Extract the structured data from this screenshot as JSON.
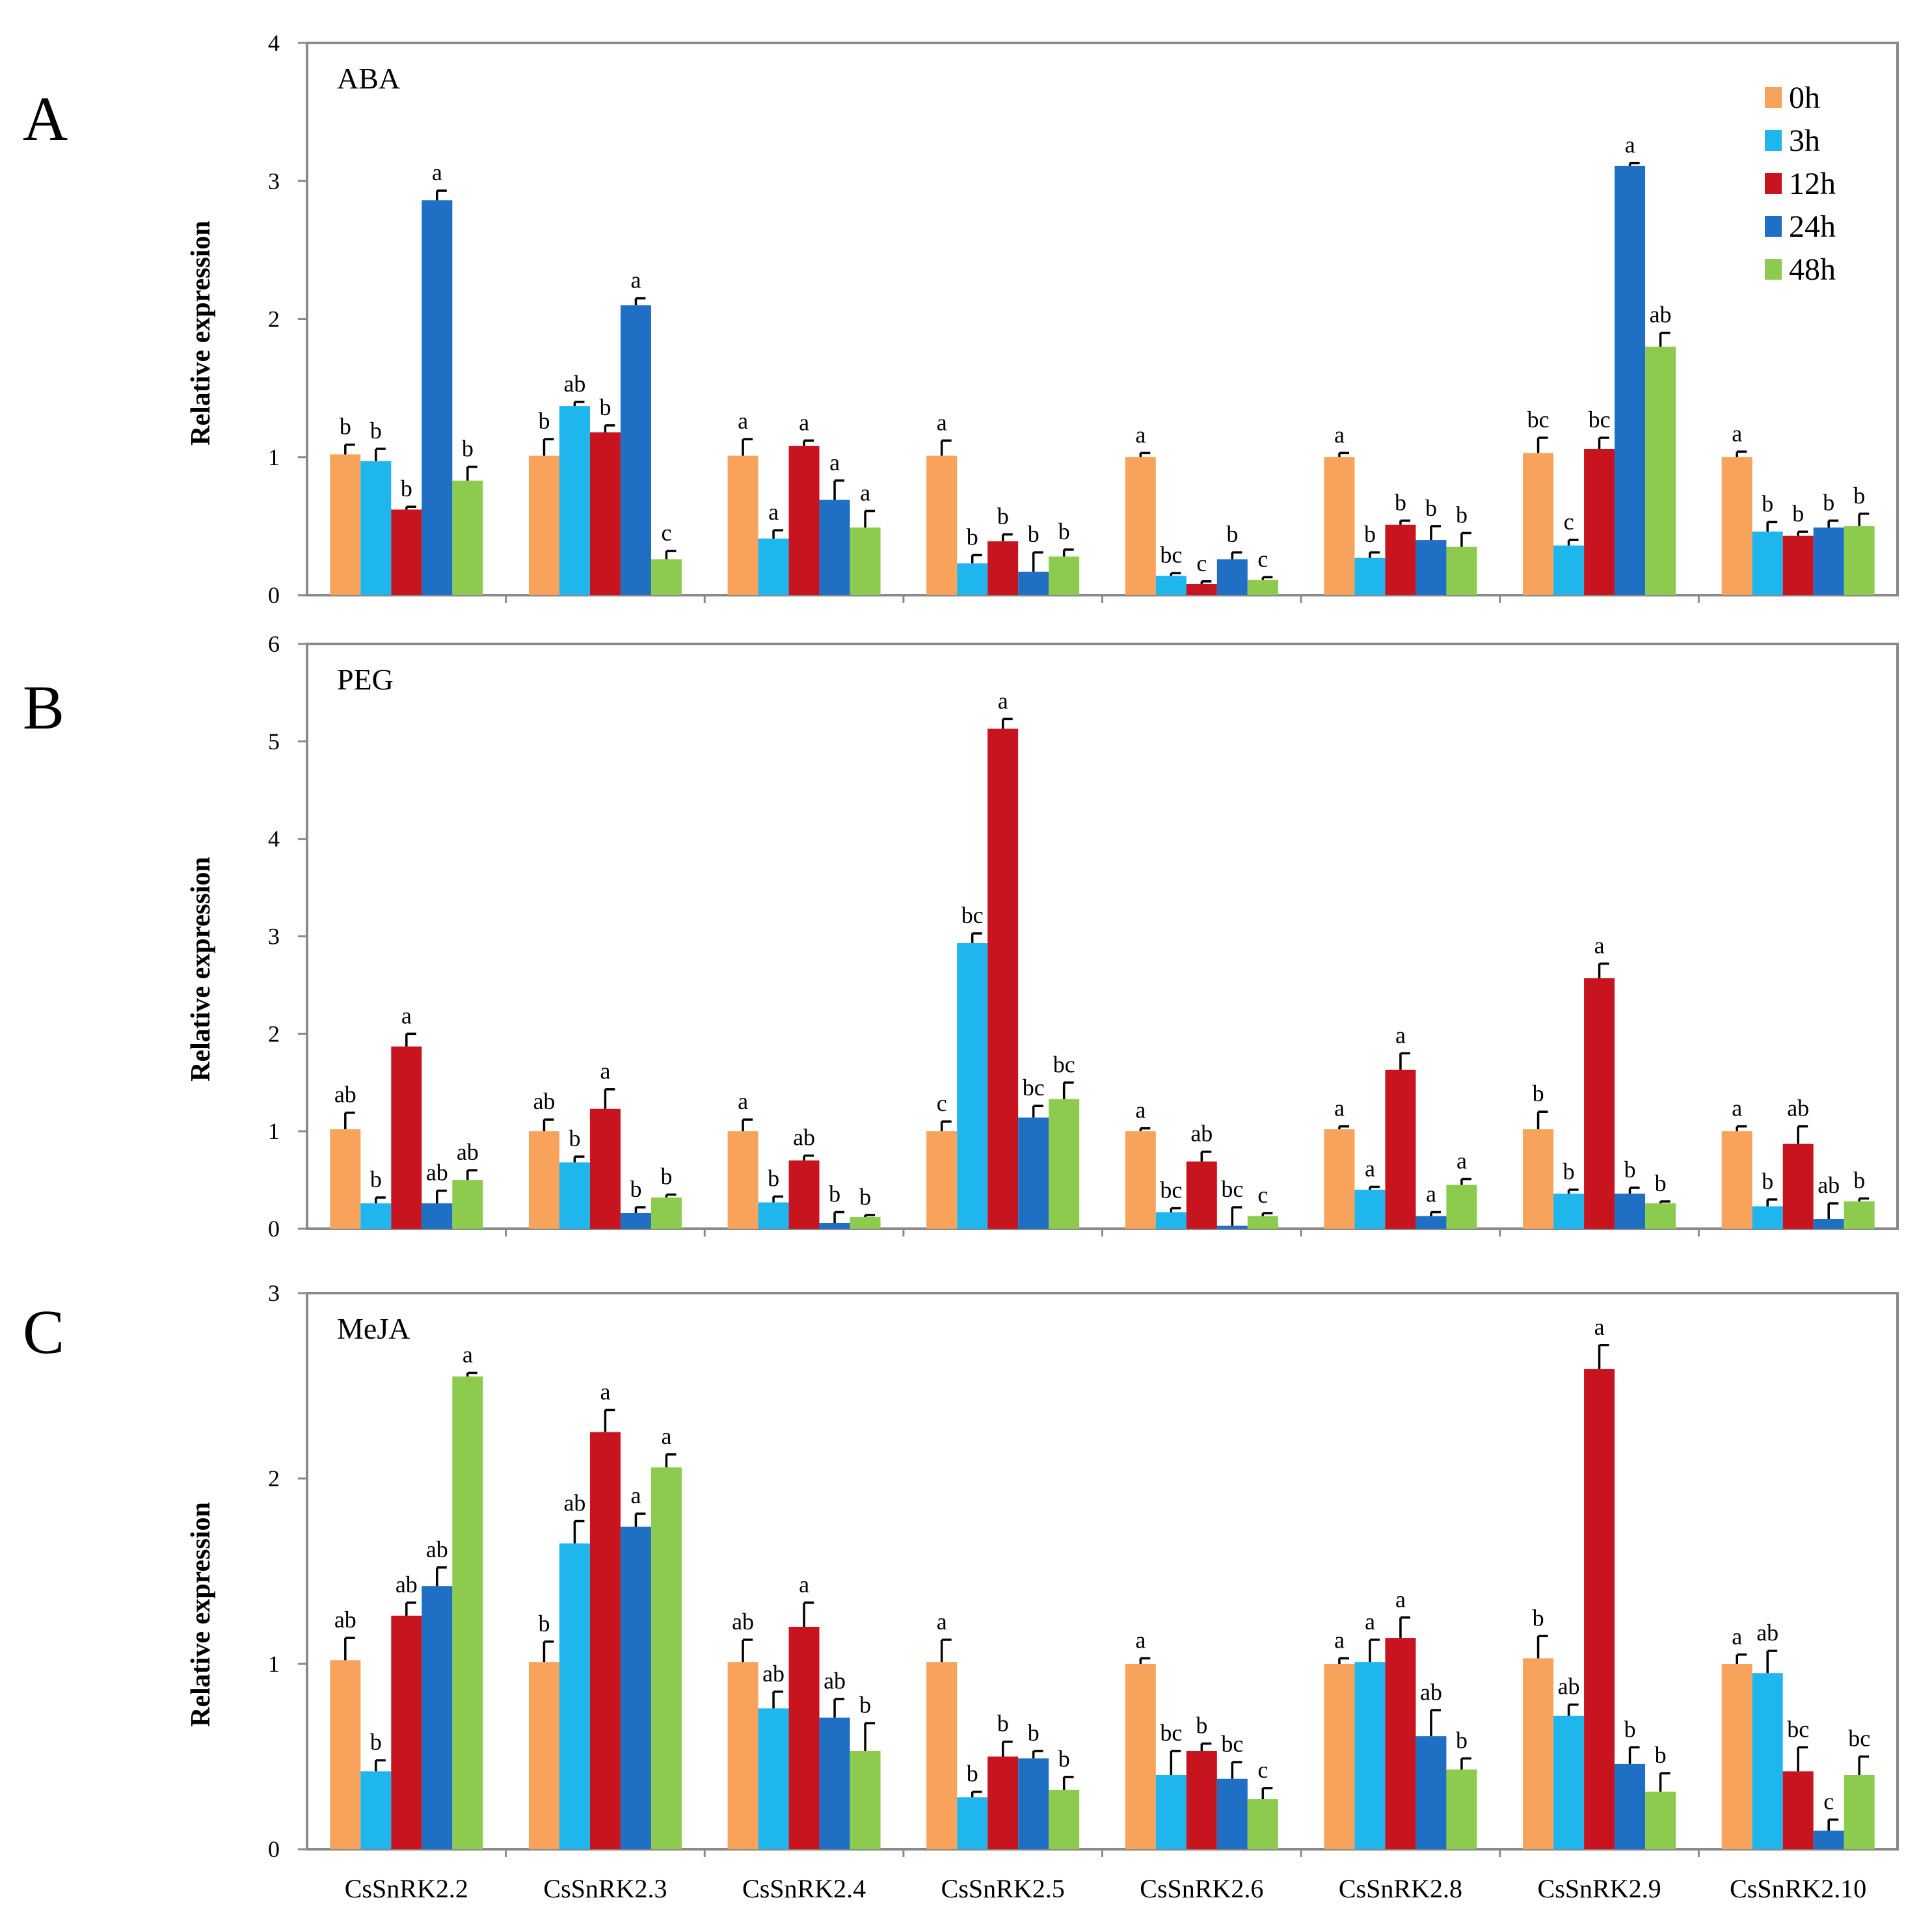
{
  "figure": {
    "x_categories": [
      "CsSnRK2.2",
      "CsSnRK2.3",
      "CsSnRK2.4",
      "CsSnRK2.5",
      "CsSnRK2.6",
      "CsSnRK2.8",
      "CsSnRK2.9",
      "CsSnRK2.10"
    ],
    "legend": {
      "entries": [
        {
          "name": "0h",
          "color": "#F7A35C"
        },
        {
          "name": "3h",
          "color": "#1FB6EE"
        },
        {
          "name": "12h",
          "color": "#C8141E"
        },
        {
          "name": "24h",
          "color": "#1F6FC4"
        },
        {
          "name": "48h",
          "color": "#8CCB4E"
        }
      ],
      "location": "top-right of panel A"
    }
  },
  "chart_data": [
    {
      "type": "bar",
      "panel_letter": "A",
      "title": "ABA",
      "ylabel": "Relative expression",
      "ylim": [
        0,
        4
      ],
      "yticks": [
        "0",
        "1",
        "2",
        "3",
        "4"
      ],
      "categories": [
        "CsSnRK2.2",
        "CsSnRK2.3",
        "CsSnRK2.4",
        "CsSnRK2.5",
        "CsSnRK2.6",
        "CsSnRK2.8",
        "CsSnRK2.9",
        "CsSnRK2.10"
      ],
      "series": [
        {
          "name": "0h",
          "values": [
            1.02,
            1.01,
            1.01,
            1.01,
            1.0,
            1.0,
            1.03,
            1.0
          ],
          "errors": [
            0.07,
            0.12,
            0.12,
            0.11,
            0.03,
            0.03,
            0.11,
            0.04
          ],
          "labels": [
            "b",
            "b",
            "a",
            "a",
            "a",
            "a",
            "bc",
            "a"
          ]
        },
        {
          "name": "3h",
          "values": [
            0.97,
            1.37,
            0.41,
            0.23,
            0.14,
            0.27,
            0.36,
            0.46
          ],
          "errors": [
            0.09,
            0.03,
            0.06,
            0.06,
            0.02,
            0.04,
            0.04,
            0.07
          ],
          "labels": [
            "b",
            "ab",
            "a",
            "b",
            "bc",
            "b",
            "c",
            "b"
          ]
        },
        {
          "name": "12h",
          "values": [
            0.62,
            1.18,
            1.08,
            0.39,
            0.08,
            0.51,
            1.06,
            0.43
          ],
          "errors": [
            0.02,
            0.05,
            0.04,
            0.05,
            0.02,
            0.03,
            0.08,
            0.03
          ],
          "labels": [
            "b",
            "b",
            "a",
            "b",
            "c",
            "b",
            "bc",
            "b"
          ]
        },
        {
          "name": "24h",
          "values": [
            2.86,
            2.1,
            0.69,
            0.17,
            0.26,
            0.4,
            3.11,
            0.49
          ],
          "errors": [
            0.07,
            0.05,
            0.14,
            0.14,
            0.05,
            0.1,
            0.02,
            0.05
          ],
          "labels": [
            "a",
            "a",
            "a",
            "b",
            "b",
            "b",
            "a",
            "b"
          ]
        },
        {
          "name": "48h",
          "values": [
            0.83,
            0.26,
            0.49,
            0.28,
            0.11,
            0.35,
            1.8,
            0.5
          ],
          "errors": [
            0.1,
            0.06,
            0.12,
            0.05,
            0.02,
            0.1,
            0.1,
            0.09
          ],
          "labels": [
            "b",
            "c",
            "a",
            "b",
            "c",
            "b",
            "ab",
            "b"
          ]
        }
      ]
    },
    {
      "type": "bar",
      "panel_letter": "B",
      "title": "PEG",
      "ylabel": "Relative expression",
      "ylim": [
        0,
        6
      ],
      "yticks": [
        "0",
        "1",
        "2",
        "3",
        "4",
        "5",
        "6"
      ],
      "categories": [
        "CsSnRK2.2",
        "CsSnRK2.3",
        "CsSnRK2.4",
        "CsSnRK2.5",
        "CsSnRK2.6",
        "CsSnRK2.8",
        "CsSnRK2.9",
        "CsSnRK2.10"
      ],
      "series": [
        {
          "name": "0h",
          "values": [
            1.02,
            1.0,
            1.0,
            1.0,
            1.0,
            1.02,
            1.02,
            1.0
          ],
          "errors": [
            0.17,
            0.12,
            0.12,
            0.1,
            0.03,
            0.03,
            0.18,
            0.05
          ],
          "labels": [
            "ab",
            "ab",
            "a",
            "c",
            "a",
            "a",
            "b",
            "a"
          ]
        },
        {
          "name": "3h",
          "values": [
            0.26,
            0.68,
            0.27,
            2.93,
            0.17,
            0.4,
            0.36,
            0.23
          ],
          "errors": [
            0.06,
            0.06,
            0.06,
            0.1,
            0.04,
            0.03,
            0.04,
            0.07
          ],
          "labels": [
            "b",
            "b",
            "b",
            "bc",
            "bc",
            "a",
            "b",
            "b"
          ]
        },
        {
          "name": "12h",
          "values": [
            1.87,
            1.23,
            0.7,
            5.13,
            0.69,
            1.63,
            2.57,
            0.87
          ],
          "errors": [
            0.13,
            0.2,
            0.05,
            0.1,
            0.1,
            0.17,
            0.15,
            0.18
          ],
          "labels": [
            "a",
            "a",
            "ab",
            "a",
            "ab",
            "a",
            "a",
            "ab"
          ]
        },
        {
          "name": "24h",
          "values": [
            0.26,
            0.16,
            0.06,
            1.14,
            0.03,
            0.13,
            0.36,
            0.1
          ],
          "errors": [
            0.13,
            0.06,
            0.11,
            0.12,
            0.19,
            0.04,
            0.06,
            0.16
          ],
          "labels": [
            "ab",
            "b",
            "b",
            "bc",
            "bc",
            "a",
            "b",
            "ab"
          ]
        },
        {
          "name": "48h",
          "values": [
            0.5,
            0.32,
            0.12,
            1.33,
            0.13,
            0.45,
            0.26,
            0.28
          ],
          "errors": [
            0.1,
            0.03,
            0.02,
            0.17,
            0.03,
            0.06,
            0.02,
            0.03
          ],
          "labels": [
            "ab",
            "b",
            "b",
            "bc",
            "c",
            "a",
            "b",
            "b"
          ]
        }
      ]
    },
    {
      "type": "bar",
      "panel_letter": "C",
      "title": "MeJA",
      "ylabel": "Relative expression",
      "ylim": [
        0,
        3
      ],
      "yticks": [
        "0",
        "1",
        "2",
        "3"
      ],
      "categories": [
        "CsSnRK2.2",
        "CsSnRK2.3",
        "CsSnRK2.4",
        "CsSnRK2.5",
        "CsSnRK2.6",
        "CsSnRK2.8",
        "CsSnRK2.9",
        "CsSnRK2.10"
      ],
      "series": [
        {
          "name": "0h",
          "values": [
            1.02,
            1.01,
            1.01,
            1.01,
            1.0,
            1.0,
            1.03,
            1.0
          ],
          "errors": [
            0.12,
            0.11,
            0.12,
            0.12,
            0.03,
            0.03,
            0.12,
            0.05
          ],
          "labels": [
            "ab",
            "b",
            "ab",
            "a",
            "a",
            "a",
            "b",
            "a"
          ]
        },
        {
          "name": "3h",
          "values": [
            0.42,
            1.65,
            0.76,
            0.28,
            0.4,
            1.01,
            0.72,
            0.95
          ],
          "errors": [
            0.06,
            0.12,
            0.09,
            0.03,
            0.13,
            0.12,
            0.06,
            0.12
          ],
          "labels": [
            "b",
            "ab",
            "ab",
            "b",
            "bc",
            "a",
            "ab",
            "ab"
          ]
        },
        {
          "name": "12h",
          "values": [
            1.26,
            2.25,
            1.2,
            0.5,
            0.53,
            1.14,
            2.59,
            0.42
          ],
          "errors": [
            0.07,
            0.12,
            0.13,
            0.08,
            0.04,
            0.11,
            0.13,
            0.13
          ],
          "labels": [
            "ab",
            "a",
            "a",
            "b",
            "b",
            "a",
            "a",
            "bc"
          ]
        },
        {
          "name": "24h",
          "values": [
            1.42,
            1.74,
            0.71,
            0.49,
            0.38,
            0.61,
            0.46,
            0.1
          ],
          "errors": [
            0.1,
            0.07,
            0.1,
            0.04,
            0.09,
            0.14,
            0.09,
            0.06
          ],
          "labels": [
            "ab",
            "a",
            "ab",
            "b",
            "bc",
            "ab",
            "b",
            "c"
          ]
        },
        {
          "name": "48h",
          "values": [
            2.55,
            2.06,
            0.53,
            0.32,
            0.27,
            0.43,
            0.31,
            0.4
          ],
          "errors": [
            0.02,
            0.07,
            0.15,
            0.07,
            0.06,
            0.06,
            0.1,
            0.1
          ],
          "labels": [
            "a",
            "a",
            "b",
            "b",
            "c",
            "b",
            "b",
            "bc"
          ]
        }
      ]
    }
  ]
}
